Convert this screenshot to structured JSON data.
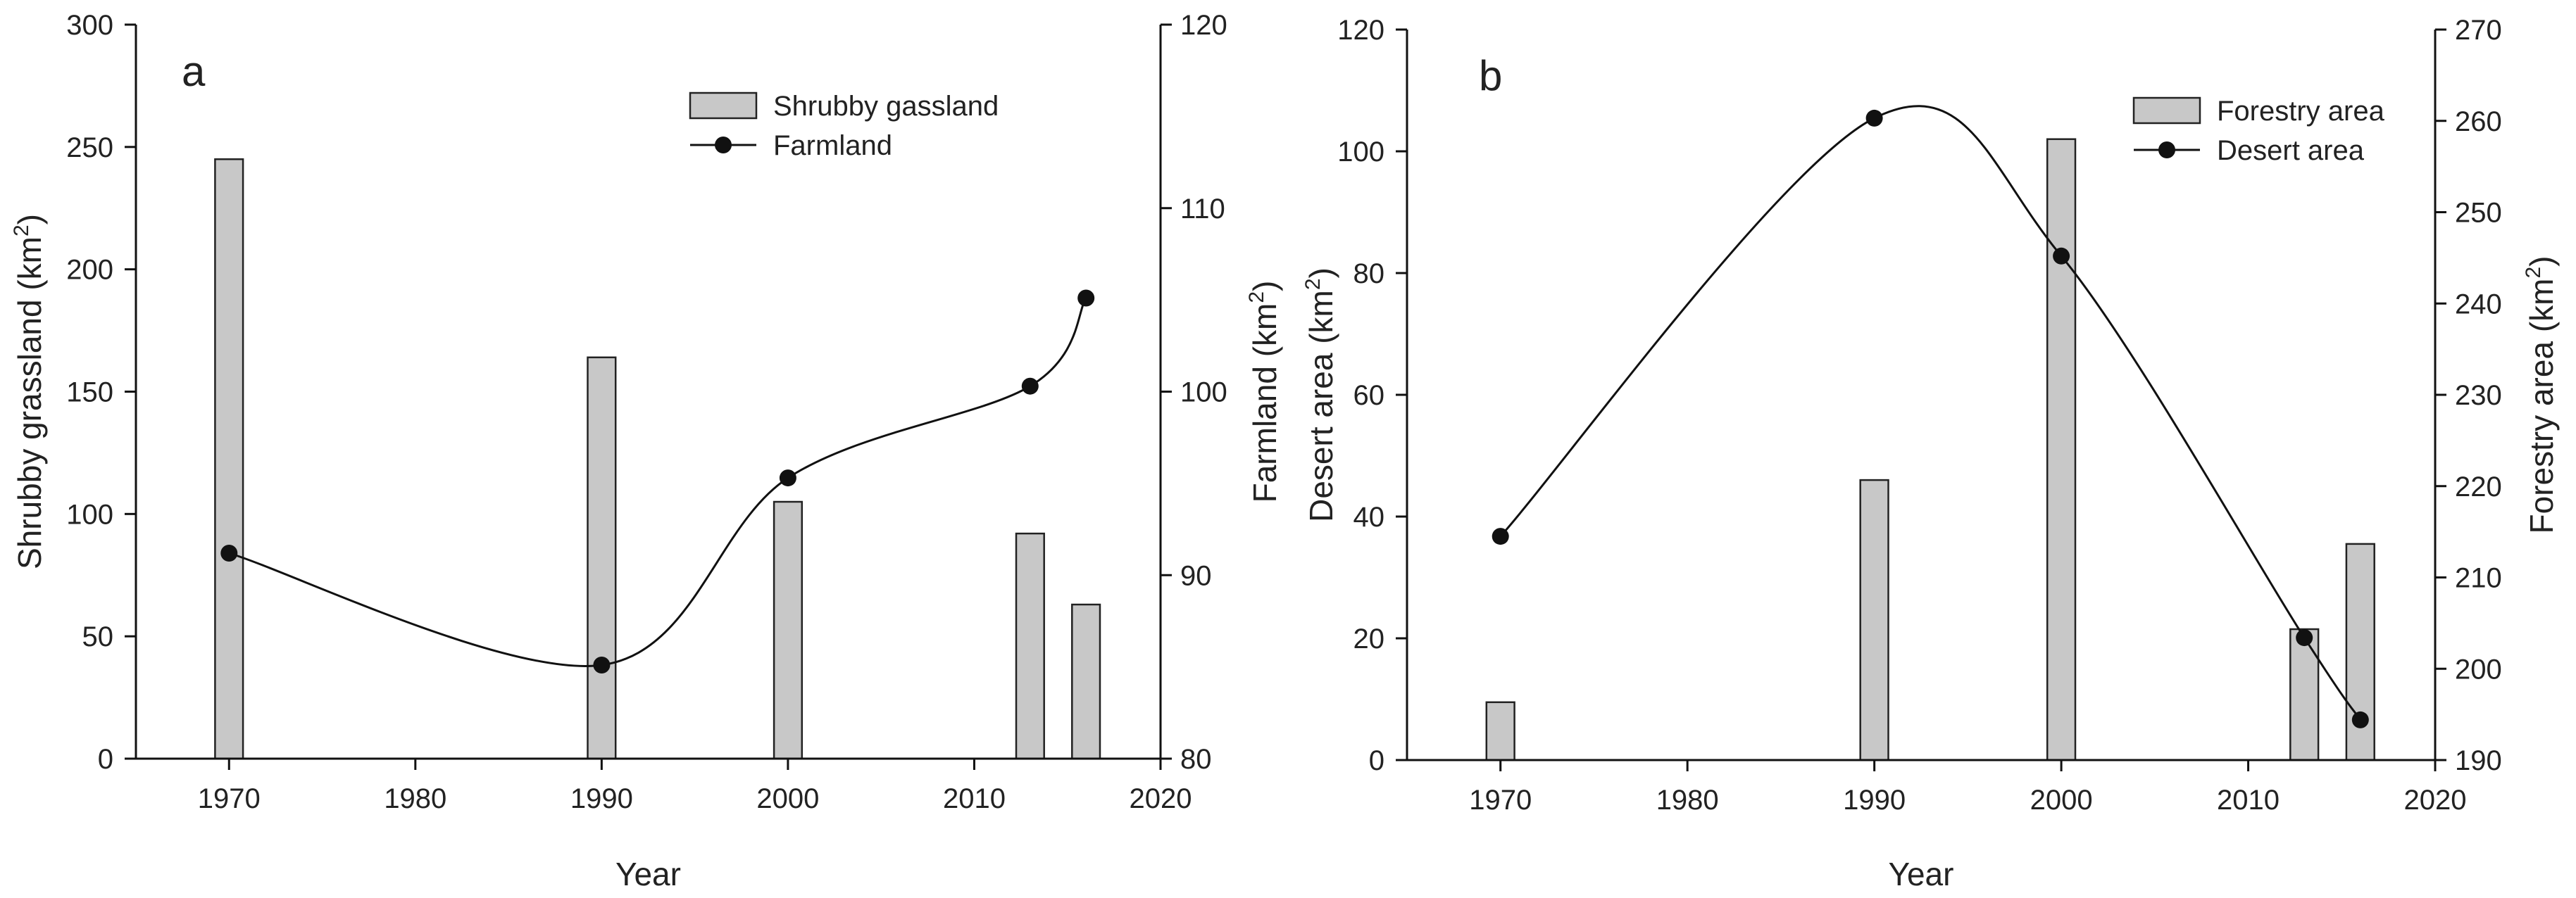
{
  "colors": {
    "bar_fill": "#c8c8c8",
    "bar_edge": "#222222",
    "line": "#111111",
    "text": "#222222"
  },
  "chart_data": [
    {
      "panel": "a",
      "type": "bar",
      "xlabel": "Year",
      "xlim": [
        1965,
        2020
      ],
      "xticks": [
        1970,
        1980,
        1990,
        2000,
        2010,
        2020
      ],
      "bar_width_years": 1.5,
      "left_axis": {
        "label": "Shrubby grassland (km",
        "unit_sup": "2",
        "unit_close": ")",
        "ylim": [
          0,
          300
        ],
        "ticks": [
          0,
          50,
          100,
          150,
          200,
          250,
          300
        ]
      },
      "right_axis": {
        "label": "Farmland (km",
        "unit_sup": "2",
        "unit_close": ")",
        "ylim": [
          80,
          120
        ],
        "ticks": [
          80,
          90,
          100,
          110,
          120
        ]
      },
      "bars": {
        "name": "Shrubby gassland",
        "axis": "left",
        "x": [
          1970,
          1990,
          2000,
          2013,
          2016
        ],
        "values": [
          245,
          164,
          105,
          92,
          63
        ]
      },
      "line": {
        "name": "Farmland",
        "axis": "right",
        "type": "line",
        "x": [
          1970,
          1990,
          2000,
          2013,
          2016
        ],
        "values": [
          91.2,
          85.1,
          95.3,
          100.3,
          105.1
        ]
      },
      "legend": {
        "placement": "top-right",
        "entries": [
          "Shrubby gassland",
          "Farmland"
        ]
      }
    },
    {
      "panel": "b",
      "type": "bar",
      "xlabel": "Year",
      "xlim": [
        1965,
        2020
      ],
      "xticks": [
        1970,
        1980,
        1990,
        2000,
        2010,
        2020
      ],
      "bar_width_years": 1.5,
      "left_axis": {
        "label": "Desert area (km",
        "unit_sup": "2",
        "unit_close": ")",
        "ylim": [
          0,
          120
        ],
        "ticks": [
          0,
          20,
          40,
          60,
          80,
          100,
          120
        ]
      },
      "right_axis": {
        "label": "Forestry area (km",
        "unit_sup": "2",
        "unit_close": ")",
        "ylim": [
          190,
          270
        ],
        "ticks": [
          190,
          200,
          210,
          220,
          230,
          240,
          250,
          260,
          270
        ]
      },
      "bars": {
        "name": "Forestry area",
        "axis": "left",
        "x": [
          1970,
          1990,
          2000,
          2013,
          2016
        ],
        "values": [
          9.5,
          46,
          102,
          21.5,
          35.5
        ]
      },
      "line": {
        "name": "Desert area",
        "axis": "right",
        "type": "line",
        "x": [
          1970,
          1990,
          2000,
          2013,
          2016
        ],
        "values": [
          214.5,
          260.3,
          245.2,
          203.4,
          194.4
        ]
      },
      "legend": {
        "placement": "top-right",
        "entries": [
          "Forestry area",
          "Desert area"
        ]
      }
    }
  ]
}
